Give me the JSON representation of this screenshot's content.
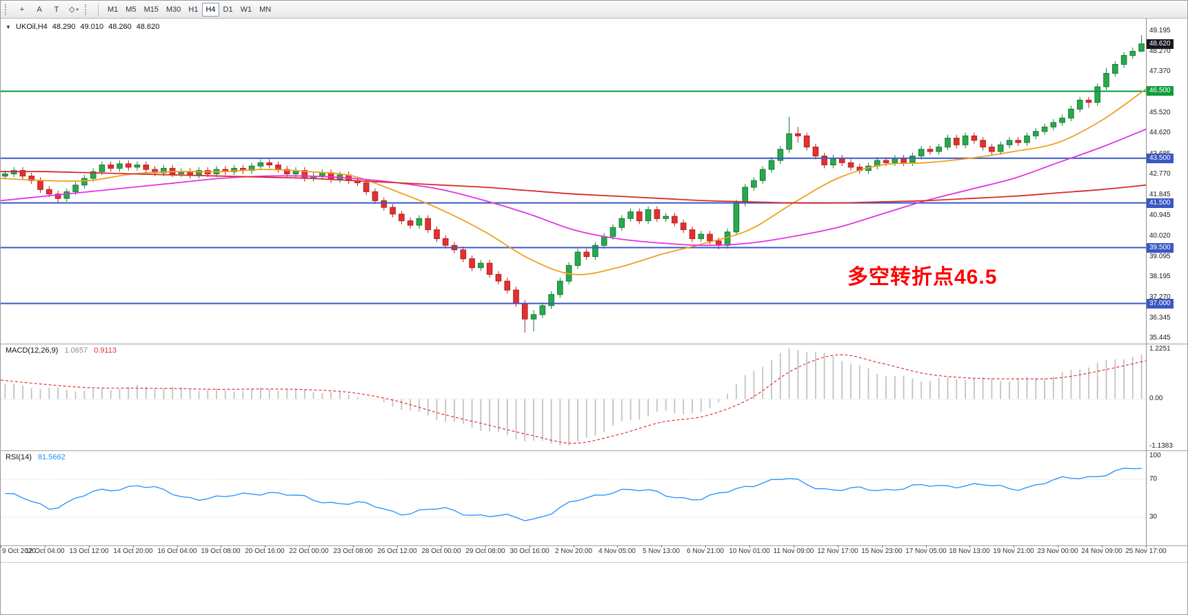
{
  "toolbar": {
    "tools": [
      {
        "id": "crosshair-tool",
        "label": "+"
      },
      {
        "id": "text-annotation-tool",
        "label": "A"
      },
      {
        "id": "text-label-tool",
        "label": "T"
      },
      {
        "id": "shapes-tool",
        "label": "◇",
        "caret": "▾"
      }
    ],
    "timeframes": [
      "M1",
      "M5",
      "M15",
      "M30",
      "H1",
      "H4",
      "D1",
      "W1",
      "MN"
    ],
    "active_timeframe": "H4"
  },
  "chart_header": {
    "dropdown_icon": "▼",
    "symbol_period": "UKOil,H4",
    "open": "48.290",
    "high": "49.010",
    "low": "48.260",
    "close": "48.620"
  },
  "annotation": {
    "text": "多空转折点46.5"
  },
  "colors": {
    "up": "#2aa84e",
    "up_border": "#157d36",
    "down": "#e53030",
    "down_border": "#b02020",
    "macd_hist": "#c2c2c2",
    "macd_signal": "#e53030",
    "rsi_line": "#1E90FF",
    "annotation": "#ff0000",
    "hline_green": "#009b3a",
    "hline_blue": "#3a57c4",
    "tag_current": "#16181d",
    "tag_green": "#0f9d3c",
    "tag_blue": "#3a57c4"
  },
  "chart_data": {
    "type": "candlestick",
    "symbol": "UKOil",
    "timeframe": "H4",
    "current_bar": {
      "open": 48.29,
      "high": 49.01,
      "low": 48.26,
      "close": 48.62
    },
    "ylim": [
      35.2,
      49.72
    ],
    "x_labels": [
      "9 Oct 2020",
      "12 Oct 04:00",
      "13 Oct 12:00",
      "14 Oct 20:00",
      "16 Oct 04:00",
      "19 Oct 08:00",
      "20 Oct 16:00",
      "22 Oct 00:00",
      "23 Oct 08:00",
      "26 Oct 12:00",
      "28 Oct 00:00",
      "29 Oct 08:00",
      "30 Oct 16:00",
      "2 Nov 20:00",
      "4 Nov 05:00",
      "5 Nov 13:00",
      "6 Nov 21:00",
      "10 Nov 01:00",
      "11 Nov 09:00",
      "12 Nov 17:00",
      "15 Nov 23:00",
      "17 Nov 05:00",
      "18 Nov 13:00",
      "19 Nov 21:00",
      "23 Nov 00:00",
      "24 Nov 09:00",
      "25 Nov 17:00"
    ],
    "price_axis_ticks": [
      "49.195",
      "48.270",
      "47.370",
      "45.520",
      "44.620",
      "43.685",
      "42.770",
      "41.845",
      "40.945",
      "40.020",
      "39.095",
      "38.195",
      "37.270",
      "36.345",
      "35.445"
    ],
    "price_axis_tags": [
      {
        "text": "48.620",
        "price": 48.62,
        "type": "current"
      },
      {
        "text": "46.500",
        "price": 46.5,
        "type": "green"
      },
      {
        "text": "43.500",
        "price": 43.5,
        "type": "blue"
      },
      {
        "text": "41.500",
        "price": 41.5,
        "type": "blue"
      },
      {
        "text": "39.500",
        "price": 39.5,
        "type": "blue"
      },
      {
        "text": "37.000",
        "price": 37.0,
        "type": "blue"
      }
    ],
    "hlines": [
      {
        "price": 46.5,
        "color": "#009b3a",
        "width": 2
      },
      {
        "price": 43.5,
        "color": "#3a57c4",
        "width": 2
      },
      {
        "price": 41.5,
        "color": "#3a57c4",
        "width": 2
      },
      {
        "price": 39.5,
        "color": "#3a57c4",
        "width": 2
      },
      {
        "price": 37.0,
        "color": "#3a57c4",
        "width": 2
      }
    ],
    "candles": [
      [
        42.7,
        42.95,
        42.55,
        42.8
      ],
      [
        42.8,
        43.1,
        42.65,
        42.95
      ],
      [
        42.95,
        43.1,
        42.55,
        42.7
      ],
      [
        42.7,
        42.85,
        42.35,
        42.5
      ],
      [
        42.5,
        42.65,
        41.95,
        42.1
      ],
      [
        42.1,
        42.25,
        41.75,
        41.9
      ],
      [
        41.9,
        42.05,
        41.48,
        41.7
      ],
      [
        41.7,
        42.15,
        41.55,
        42.0
      ],
      [
        42.0,
        42.45,
        41.85,
        42.3
      ],
      [
        42.3,
        42.75,
        42.15,
        42.6
      ],
      [
        42.6,
        43.05,
        42.45,
        42.9
      ],
      [
        42.9,
        43.35,
        42.75,
        43.2
      ],
      [
        43.2,
        43.35,
        42.9,
        43.05
      ],
      [
        43.05,
        43.4,
        42.9,
        43.25
      ],
      [
        43.25,
        43.4,
        42.95,
        43.1
      ],
      [
        43.1,
        43.35,
        42.95,
        43.2
      ],
      [
        43.2,
        43.35,
        42.85,
        43.0
      ],
      [
        43.0,
        43.15,
        42.7,
        42.85
      ],
      [
        42.85,
        43.2,
        42.7,
        43.05
      ],
      [
        43.05,
        43.2,
        42.65,
        42.8
      ],
      [
        42.8,
        43.05,
        42.65,
        42.9
      ],
      [
        42.9,
        43.05,
        42.6,
        42.75
      ],
      [
        42.75,
        43.1,
        42.6,
        42.95
      ],
      [
        42.95,
        43.1,
        42.65,
        42.8
      ],
      [
        42.8,
        43.15,
        42.65,
        43.0
      ],
      [
        43.0,
        43.15,
        42.75,
        42.9
      ],
      [
        42.9,
        43.2,
        42.75,
        43.05
      ],
      [
        43.05,
        43.2,
        42.8,
        42.95
      ],
      [
        42.95,
        43.3,
        42.8,
        43.15
      ],
      [
        43.15,
        43.45,
        43.0,
        43.3
      ],
      [
        43.3,
        43.45,
        43.05,
        43.2
      ],
      [
        43.2,
        43.35,
        42.85,
        43.0
      ],
      [
        43.0,
        43.15,
        42.65,
        42.8
      ],
      [
        42.8,
        43.1,
        42.65,
        42.95
      ],
      [
        42.95,
        43.1,
        42.45,
        42.6
      ],
      [
        42.6,
        42.85,
        42.45,
        42.7
      ],
      [
        42.7,
        43.0,
        42.55,
        42.85
      ],
      [
        42.85,
        43.0,
        42.4,
        42.55
      ],
      [
        42.55,
        42.9,
        42.4,
        42.75
      ],
      [
        42.75,
        42.9,
        42.35,
        42.5
      ],
      [
        42.5,
        42.65,
        42.25,
        42.4
      ],
      [
        42.4,
        42.55,
        41.85,
        42.0
      ],
      [
        42.0,
        42.15,
        41.45,
        41.6
      ],
      [
        41.6,
        41.75,
        41.15,
        41.3
      ],
      [
        41.3,
        41.45,
        40.85,
        41.0
      ],
      [
        41.0,
        41.15,
        40.55,
        40.7
      ],
      [
        40.7,
        40.85,
        40.35,
        40.5
      ],
      [
        40.5,
        40.95,
        40.35,
        40.8
      ],
      [
        40.8,
        40.95,
        40.15,
        40.3
      ],
      [
        40.3,
        40.45,
        39.75,
        39.9
      ],
      [
        39.9,
        40.05,
        39.45,
        39.6
      ],
      [
        39.6,
        39.75,
        39.25,
        39.4
      ],
      [
        39.4,
        39.55,
        38.85,
        39.0
      ],
      [
        39.0,
        39.15,
        38.45,
        38.6
      ],
      [
        38.6,
        38.95,
        38.45,
        38.8
      ],
      [
        38.8,
        38.95,
        38.15,
        38.3
      ],
      [
        38.3,
        38.45,
        37.85,
        38.0
      ],
      [
        38.0,
        38.15,
        37.45,
        37.6
      ],
      [
        37.6,
        37.75,
        36.85,
        37.0
      ],
      [
        37.0,
        37.15,
        35.7,
        36.3
      ],
      [
        36.3,
        36.7,
        35.75,
        36.5
      ],
      [
        36.5,
        37.05,
        36.35,
        36.9
      ],
      [
        36.9,
        37.55,
        36.75,
        37.4
      ],
      [
        37.4,
        38.15,
        37.25,
        38.0
      ],
      [
        38.0,
        38.85,
        37.85,
        38.7
      ],
      [
        38.7,
        39.45,
        38.55,
        39.3
      ],
      [
        39.3,
        39.45,
        38.95,
        39.1
      ],
      [
        39.1,
        39.75,
        38.95,
        39.6
      ],
      [
        39.6,
        40.15,
        39.45,
        40.0
      ],
      [
        40.0,
        40.55,
        39.85,
        40.4
      ],
      [
        40.4,
        40.95,
        40.25,
        40.8
      ],
      [
        40.8,
        41.25,
        40.65,
        41.1
      ],
      [
        41.1,
        41.25,
        40.55,
        40.7
      ],
      [
        40.7,
        41.35,
        40.55,
        41.2
      ],
      [
        41.2,
        41.35,
        40.65,
        40.8
      ],
      [
        40.8,
        41.05,
        40.65,
        40.9
      ],
      [
        40.9,
        41.05,
        40.45,
        40.6
      ],
      [
        40.6,
        40.75,
        40.15,
        40.3
      ],
      [
        40.3,
        40.45,
        39.75,
        39.9
      ],
      [
        39.9,
        40.25,
        39.75,
        40.1
      ],
      [
        40.1,
        40.25,
        39.65,
        39.8
      ],
      [
        39.8,
        39.95,
        39.42,
        39.6
      ],
      [
        39.6,
        40.35,
        39.45,
        40.2
      ],
      [
        40.2,
        41.65,
        40.05,
        41.5
      ],
      [
        41.5,
        42.35,
        41.35,
        42.2
      ],
      [
        42.2,
        42.65,
        42.05,
        42.5
      ],
      [
        42.5,
        43.15,
        42.35,
        43.0
      ],
      [
        43.0,
        43.55,
        42.85,
        43.4
      ],
      [
        43.4,
        44.05,
        43.25,
        43.9
      ],
      [
        43.9,
        45.35,
        43.75,
        44.6
      ],
      [
        44.6,
        44.9,
        44.2,
        44.5
      ],
      [
        44.5,
        44.65,
        43.85,
        44.0
      ],
      [
        44.0,
        44.15,
        43.45,
        43.6
      ],
      [
        43.6,
        43.75,
        43.05,
        43.2
      ],
      [
        43.2,
        43.65,
        43.05,
        43.5
      ],
      [
        43.5,
        43.65,
        43.15,
        43.3
      ],
      [
        43.3,
        43.45,
        42.95,
        43.1
      ],
      [
        43.1,
        43.25,
        42.8,
        42.95
      ],
      [
        42.95,
        43.3,
        42.8,
        43.15
      ],
      [
        43.15,
        43.55,
        43.0,
        43.4
      ],
      [
        43.4,
        43.55,
        43.15,
        43.3
      ],
      [
        43.3,
        43.65,
        43.15,
        43.5
      ],
      [
        43.5,
        43.65,
        43.15,
        43.3
      ],
      [
        43.3,
        43.75,
        43.15,
        43.6
      ],
      [
        43.6,
        44.05,
        43.45,
        43.9
      ],
      [
        43.9,
        44.05,
        43.65,
        43.8
      ],
      [
        43.8,
        44.15,
        43.65,
        44.0
      ],
      [
        44.0,
        44.55,
        43.85,
        44.4
      ],
      [
        44.4,
        44.55,
        43.95,
        44.1
      ],
      [
        44.1,
        44.65,
        43.95,
        44.5
      ],
      [
        44.5,
        44.65,
        44.15,
        44.3
      ],
      [
        44.3,
        44.45,
        43.85,
        44.0
      ],
      [
        44.0,
        44.15,
        43.65,
        43.8
      ],
      [
        43.8,
        44.25,
        43.65,
        44.1
      ],
      [
        44.1,
        44.45,
        43.95,
        44.3
      ],
      [
        44.3,
        44.45,
        44.05,
        44.2
      ],
      [
        44.2,
        44.65,
        44.05,
        44.5
      ],
      [
        44.5,
        44.85,
        44.35,
        44.7
      ],
      [
        44.7,
        45.05,
        44.55,
        44.9
      ],
      [
        44.9,
        45.25,
        44.75,
        45.1
      ],
      [
        45.1,
        45.45,
        44.95,
        45.3
      ],
      [
        45.3,
        45.85,
        45.15,
        45.7
      ],
      [
        45.7,
        46.25,
        45.55,
        46.1
      ],
      [
        46.1,
        46.25,
        45.75,
        46.0
      ],
      [
        46.0,
        46.85,
        45.85,
        46.7
      ],
      [
        46.7,
        47.55,
        46.55,
        47.3
      ],
      [
        47.3,
        47.85,
        47.15,
        47.7
      ],
      [
        47.7,
        48.25,
        47.55,
        48.1
      ],
      [
        48.1,
        48.45,
        47.95,
        48.29
      ],
      [
        48.29,
        49.01,
        48.26,
        48.62
      ]
    ],
    "moving_averages": [
      {
        "name": "ma-fast",
        "color": "#f0a020",
        "anchors": [
          42.6,
          42.5,
          42.5,
          42.8,
          42.9,
          42.9,
          43.0,
          42.9,
          42.7,
          42.0,
          41.2,
          40.2,
          39.0,
          38.3,
          38.6,
          39.2,
          39.7,
          40.3,
          41.5,
          42.6,
          43.2,
          43.3,
          43.5,
          43.8,
          44.2,
          45.2,
          46.6
        ]
      },
      {
        "name": "ma-mid",
        "color": "#e332e3",
        "anchors": [
          41.6,
          41.8,
          42.0,
          42.2,
          42.4,
          42.6,
          42.7,
          42.7,
          42.6,
          42.4,
          42.1,
          41.6,
          41.0,
          40.3,
          39.9,
          39.7,
          39.6,
          39.7,
          40.0,
          40.4,
          41.0,
          41.6,
          42.1,
          42.6,
          43.3,
          44.0,
          44.8
        ]
      },
      {
        "name": "ma-slow",
        "color": "#d92b2b",
        "anchors": [
          42.9,
          42.9,
          42.85,
          42.8,
          42.75,
          42.7,
          42.65,
          42.6,
          42.5,
          42.4,
          42.3,
          42.2,
          42.05,
          41.9,
          41.8,
          41.7,
          41.6,
          41.55,
          41.5,
          41.5,
          41.55,
          41.6,
          41.7,
          41.8,
          41.95,
          42.1,
          42.3
        ]
      }
    ],
    "macd": {
      "label": "MACD(12,26,9)",
      "main_value": "1.0657",
      "signal_value": "0.9113",
      "axis": [
        "1.2251",
        "0.00",
        "-1.1383"
      ],
      "range": [
        -1.22,
        1.3
      ],
      "main_anchors": [
        0.35,
        0.25,
        0.2,
        0.3,
        0.25,
        0.2,
        0.25,
        0.2,
        0.1,
        -0.2,
        -0.5,
        -0.75,
        -1.0,
        -1.1,
        -0.6,
        -0.3,
        -0.35,
        0.6,
        1.22,
        1.0,
        0.6,
        0.45,
        0.5,
        0.45,
        0.55,
        0.85,
        1.07
      ],
      "signal_anchors": [
        0.45,
        0.35,
        0.27,
        0.26,
        0.25,
        0.23,
        0.24,
        0.22,
        0.15,
        -0.05,
        -0.35,
        -0.6,
        -0.85,
        -1.05,
        -0.85,
        -0.55,
        -0.4,
        0.0,
        0.7,
        1.05,
        0.85,
        0.6,
        0.5,
        0.48,
        0.5,
        0.68,
        0.91
      ]
    },
    "rsi": {
      "label": "RSI(14)",
      "value": "81.5662",
      "axis": [
        "100",
        "70",
        "30"
      ],
      "levels": [
        70,
        30
      ],
      "anchors": [
        55,
        40,
        55,
        65,
        52,
        50,
        58,
        48,
        45,
        35,
        38,
        32,
        27,
        45,
        60,
        55,
        48,
        65,
        70,
        58,
        60,
        62,
        65,
        60,
        68,
        75,
        82
      ]
    }
  }
}
